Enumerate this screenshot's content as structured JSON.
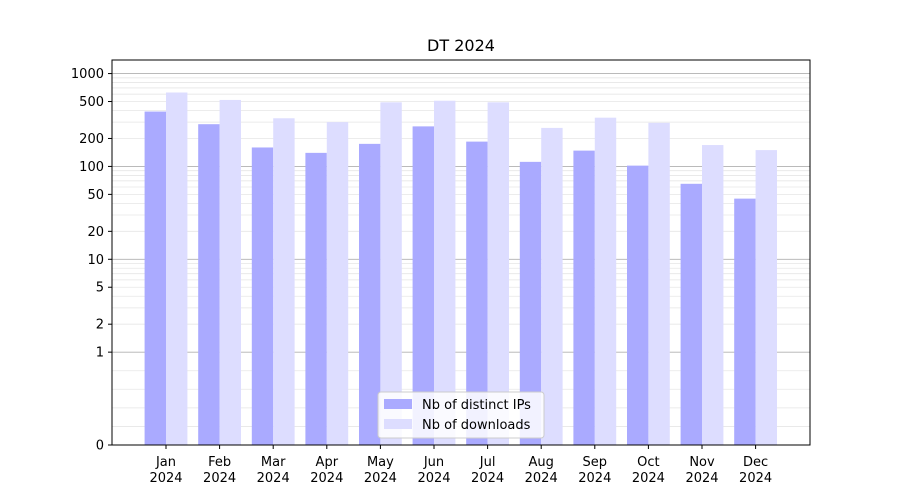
{
  "chart_data": {
    "type": "bar",
    "title": "DT 2024",
    "xlabel": "",
    "ylabel": "",
    "y_scale": "symlog",
    "ylim": [
      0,
      1400
    ],
    "y_ticks": [
      0,
      1,
      2,
      5,
      10,
      20,
      50,
      100,
      200,
      500,
      1000
    ],
    "grid": "y (major and minor, light grey)",
    "legend_position": "bottom-center",
    "categories": [
      [
        "Jan",
        "2024"
      ],
      [
        "Feb",
        "2024"
      ],
      [
        "Mar",
        "2024"
      ],
      [
        "Apr",
        "2024"
      ],
      [
        "May",
        "2024"
      ],
      [
        "Jun",
        "2024"
      ],
      [
        "Jul",
        "2024"
      ],
      [
        "Aug",
        "2024"
      ],
      [
        "Sep",
        "2024"
      ],
      [
        "Oct",
        "2024"
      ],
      [
        "Nov",
        "2024"
      ],
      [
        "Dec",
        "2024"
      ]
    ],
    "series": [
      {
        "name": "Nb of distinct IPs",
        "color": "#aaaaff",
        "values": [
          390,
          285,
          160,
          140,
          175,
          270,
          185,
          112,
          148,
          102,
          65,
          45
        ]
      },
      {
        "name": "Nb of downloads",
        "color": "#ddddff",
        "values": [
          625,
          520,
          330,
          300,
          490,
          510,
          490,
          260,
          335,
          295,
          170,
          150
        ]
      }
    ]
  }
}
